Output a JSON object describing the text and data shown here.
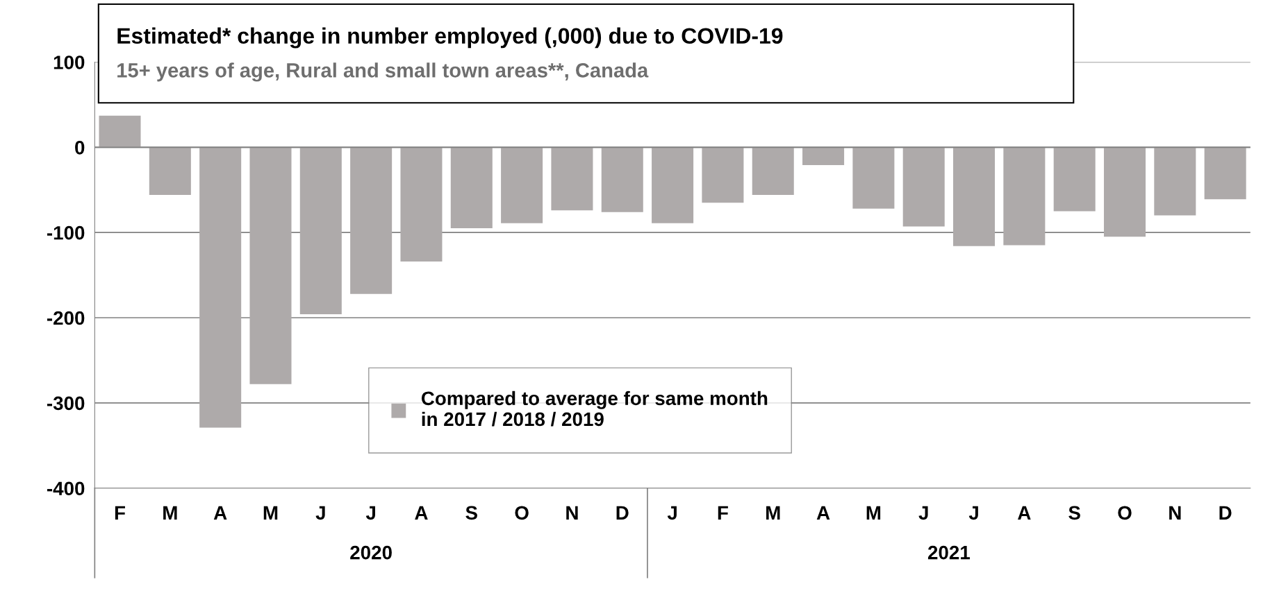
{
  "chart_data": {
    "type": "bar",
    "title": "Estimated* change in number employed (,000) due to COVID-19",
    "subtitle": "15+ years of age, Rural and small town areas**, Canada",
    "categories": [
      "F",
      "M",
      "A",
      "M",
      "J",
      "J",
      "A",
      "S",
      "O",
      "N",
      "D",
      "J",
      "F",
      "M",
      "A",
      "M",
      "J",
      "J",
      "A",
      "S",
      "O",
      "N",
      "D"
    ],
    "series": [
      {
        "name": "Compared to average for same month\nin 2017 / 2018 / 2019",
        "color": "#aeaaaa",
        "values": [
          37,
          -56,
          -329,
          -278,
          -196,
          -172,
          -134,
          -95,
          -89,
          -74,
          -76,
          -89,
          -65,
          -56,
          -21,
          -72,
          -93,
          -116,
          -115,
          -75,
          -105,
          -80,
          -61
        ]
      }
    ],
    "annotations": [
      "2020",
      "2021"
    ],
    "ylim": [
      -400,
      100
    ],
    "yticks": [
      -400,
      -300,
      -200,
      -100,
      0,
      100
    ],
    "grid": "y",
    "legend": "bottom"
  }
}
